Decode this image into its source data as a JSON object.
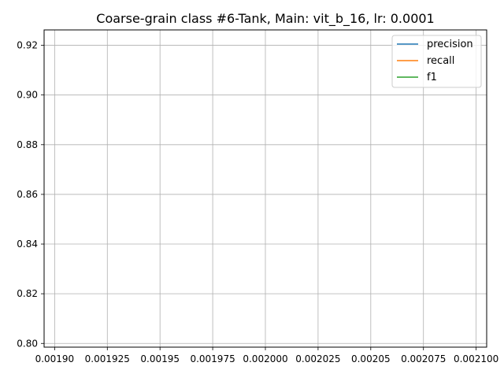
{
  "chart_data": {
    "type": "line",
    "title": "Coarse-grain class #6-Tank, Main: vit_b_16, lr: 0.0001",
    "xlabel": "",
    "ylabel": "",
    "xlim": [
      0.001895,
      0.002105
    ],
    "ylim": [
      0.7985,
      0.9262
    ],
    "x_ticks": [
      0.0019,
      0.001925,
      0.00195,
      0.001975,
      0.002,
      0.002025,
      0.00205,
      0.002075,
      0.0021
    ],
    "x_tick_labels": [
      "0.00190",
      "0.001925",
      "0.00195",
      "0.001975",
      "0.002000",
      "0.002025",
      "0.00205",
      "0.002075",
      "0.002100"
    ],
    "y_ticks": [
      0.8,
      0.82,
      0.84,
      0.86,
      0.88,
      0.9,
      0.92
    ],
    "y_tick_labels": [
      "0.80",
      "0.82",
      "0.84",
      "0.86",
      "0.88",
      "0.90",
      "0.92"
    ],
    "grid": true,
    "legend_position": "top-right",
    "series": [
      {
        "name": "precision",
        "color": "#1f77b4",
        "x": [],
        "values": []
      },
      {
        "name": "recall",
        "color": "#ff7f0e",
        "x": [],
        "values": []
      },
      {
        "name": "f1",
        "color": "#2ca02c",
        "x": [],
        "values": []
      }
    ]
  }
}
